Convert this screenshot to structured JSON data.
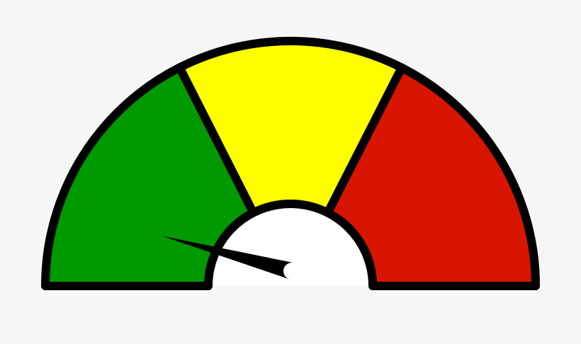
{
  "gauge": {
    "segments": [
      {
        "name": "green",
        "color": "#009900"
      },
      {
        "name": "yellow",
        "color": "#ffff00"
      },
      {
        "name": "red",
        "color": "#d81500"
      }
    ],
    "outline_color": "#000000",
    "needle_color": "#000000",
    "hub_color": "#ffffff",
    "background_color": "#f6f6f6",
    "needle_level_fraction": 0.1
  }
}
